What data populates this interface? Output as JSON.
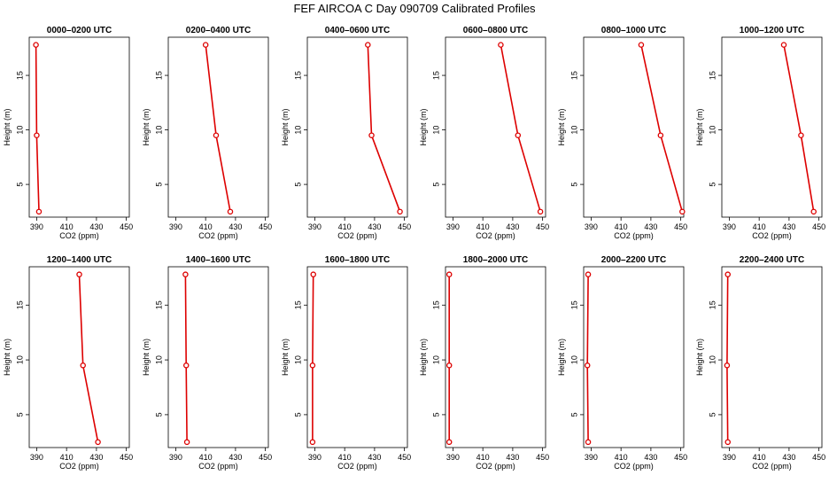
{
  "title": "FEF AIRCOA C  Day 090709  Calibrated Profiles",
  "colors": {
    "profile": "#dd0000",
    "axis": "#000000"
  },
  "chart_data": {
    "type": "line",
    "xlabel": "CO2 (ppm)",
    "ylabel": "Height (m)",
    "xlim": [
      385,
      452
    ],
    "ylim": [
      2,
      18.5
    ],
    "xticks": [
      390,
      410,
      430,
      450
    ],
    "yticks": [
      5,
      10,
      15
    ],
    "heights": [
      2.5,
      9.5,
      17.8
    ],
    "panels": [
      {
        "title": "0000–0200 UTC",
        "x": [
          391.5,
          390.0,
          389.5
        ]
      },
      {
        "title": "0200–0400 UTC",
        "x": [
          426.5,
          417.0,
          410.0
        ]
      },
      {
        "title": "0400–0600 UTC",
        "x": [
          447.0,
          428.0,
          425.5
        ]
      },
      {
        "title": "0600–0800 UTC",
        "x": [
          448.5,
          433.5,
          422.0
        ]
      },
      {
        "title": "0800–1000 UTC",
        "x": [
          451.0,
          436.5,
          423.5
        ]
      },
      {
        "title": "1000–1200 UTC",
        "x": [
          446.5,
          438.0,
          426.5
        ]
      },
      {
        "title": "1200–1400 UTC",
        "x": [
          431.0,
          421.0,
          418.5
        ]
      },
      {
        "title": "1400–1600 UTC",
        "x": [
          397.5,
          397.0,
          396.5
        ]
      },
      {
        "title": "1600–1800 UTC",
        "x": [
          388.5,
          388.5,
          389.0
        ]
      },
      {
        "title": "1800–2000 UTC",
        "x": [
          387.5,
          387.5,
          387.5
        ]
      },
      {
        "title": "2000–2200 UTC",
        "x": [
          388.0,
          387.5,
          388.0
        ]
      },
      {
        "title": "2200–2400 UTC",
        "x": [
          389.0,
          388.5,
          389.0
        ]
      }
    ]
  }
}
